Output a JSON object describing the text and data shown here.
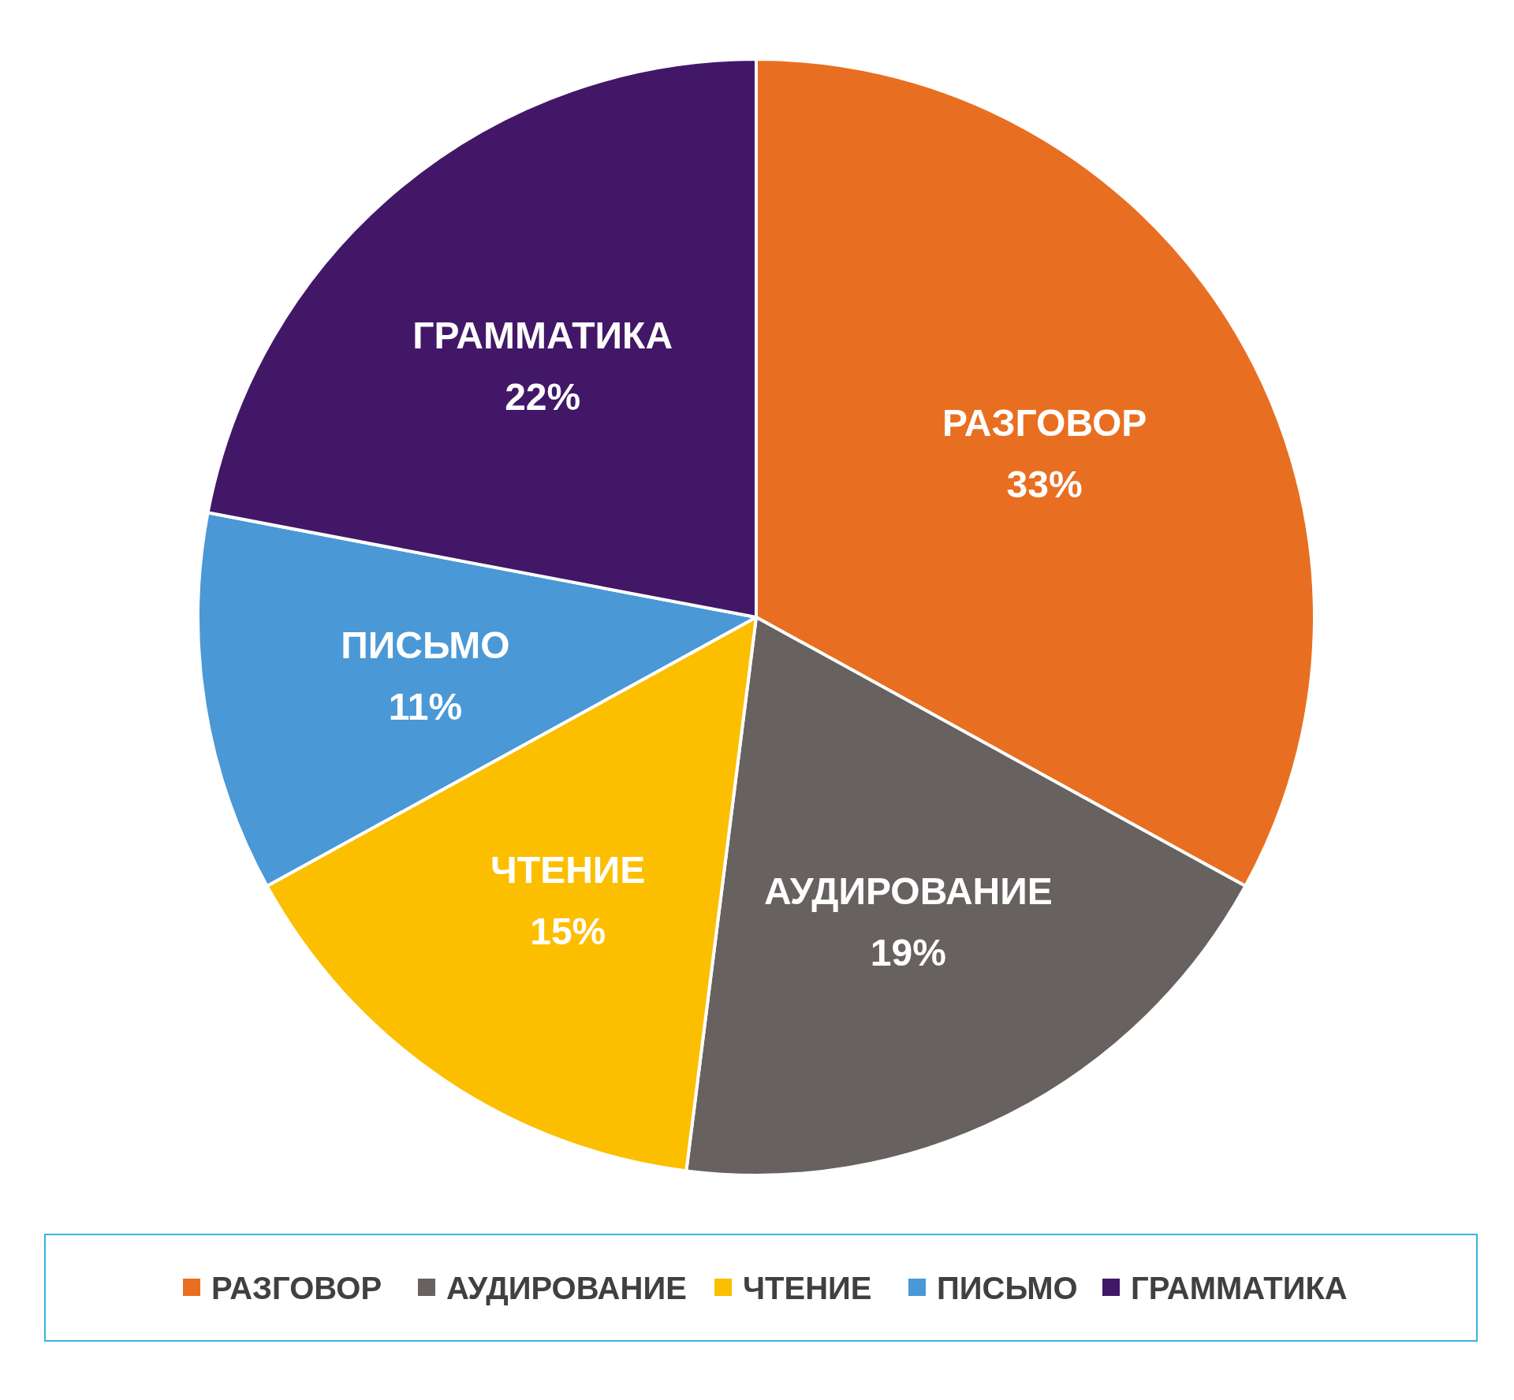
{
  "chart_data": {
    "type": "pie",
    "categories": [
      "РАЗГОВОР",
      "АУДИРОВАНИЕ",
      "ЧТЕНИЕ",
      "ПИСЬМО",
      "ГРАММАТИКА"
    ],
    "values": [
      33,
      19,
      15,
      11,
      22
    ],
    "colors": [
      "#e86f21",
      "#676160",
      "#fbbf00",
      "#4a98d6",
      "#421768"
    ],
    "value_labels": [
      "33%",
      "19%",
      "15%",
      "11%",
      "22%"
    ],
    "legend": "bottom"
  }
}
